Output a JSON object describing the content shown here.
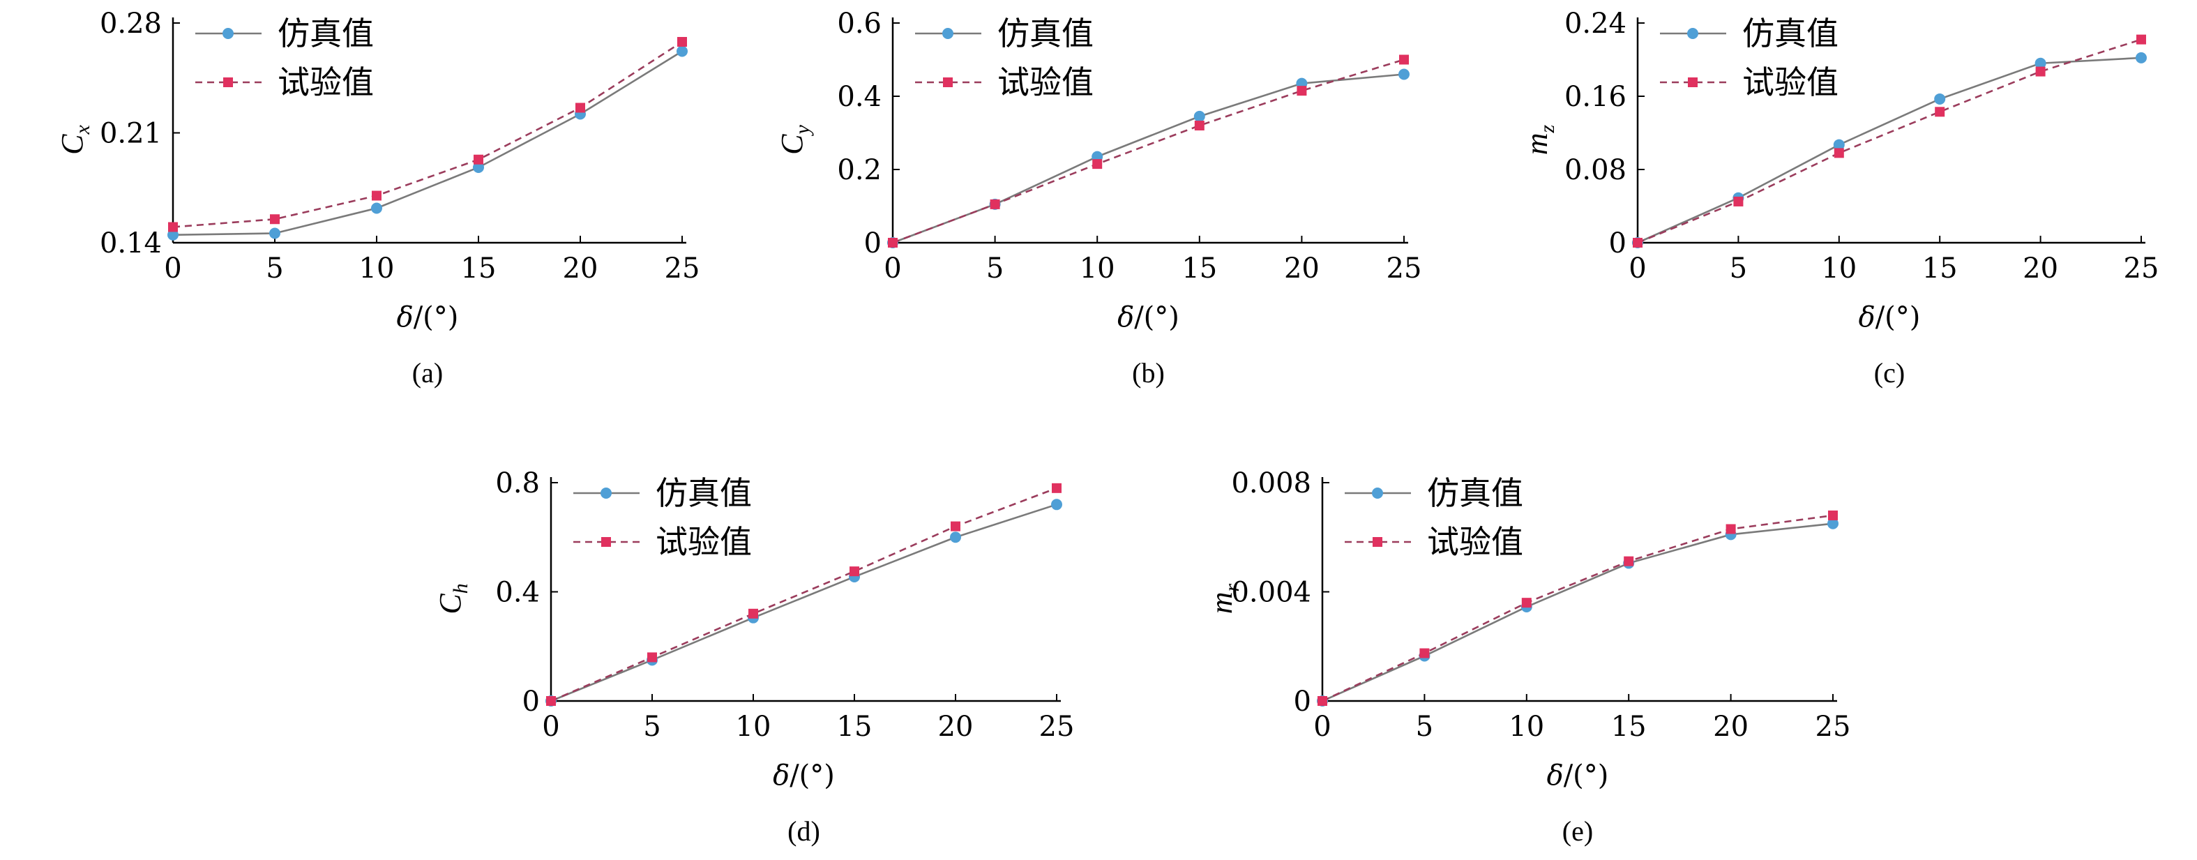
{
  "colors": {
    "sim": "#4f9fd6",
    "sim_line": "#7a7a7a",
    "exp": "#e0315f",
    "exp_line": "#9b3c5c",
    "axis": "#000000"
  },
  "chart_data": [
    {
      "type": "line",
      "panel_label": "(a)",
      "xlabel_html": "δ/(°)",
      "ylabel_main": "C",
      "ylabel_sub": "x",
      "x": [
        0,
        5,
        10,
        15,
        20,
        25
      ],
      "xlim": [
        0,
        25
      ],
      "xticks": [
        "0",
        "5",
        "10",
        "15",
        "20",
        "25"
      ],
      "ylim": [
        0.14,
        0.28
      ],
      "yticks": [
        "0.14",
        "0.21",
        "0.28"
      ],
      "yticks_values": [
        0.14,
        0.21,
        0.28
      ],
      "legend": "top-left",
      "grid": false,
      "series": [
        {
          "name": "仿真值",
          "values": [
            0.145,
            0.146,
            0.162,
            0.188,
            0.222,
            0.262
          ]
        },
        {
          "name": "试验值",
          "values": [
            0.15,
            0.155,
            0.17,
            0.193,
            0.226,
            0.268
          ]
        }
      ]
    },
    {
      "type": "line",
      "panel_label": "(b)",
      "xlabel_html": "δ/(°)",
      "ylabel_main": "C",
      "ylabel_sub": "y",
      "x": [
        0,
        5,
        10,
        15,
        20,
        25
      ],
      "xlim": [
        0,
        25
      ],
      "xticks": [
        "0",
        "5",
        "10",
        "15",
        "20",
        "25"
      ],
      "ylim": [
        0,
        0.6
      ],
      "yticks": [
        "0",
        "0.2",
        "0.4",
        "0.6"
      ],
      "yticks_values": [
        0,
        0.2,
        0.4,
        0.6
      ],
      "legend": "top-left",
      "grid": false,
      "series": [
        {
          "name": "仿真值",
          "values": [
            0,
            0.105,
            0.235,
            0.345,
            0.435,
            0.46
          ]
        },
        {
          "name": "试验值",
          "values": [
            0,
            0.105,
            0.215,
            0.32,
            0.415,
            0.5
          ]
        }
      ]
    },
    {
      "type": "line",
      "panel_label": "(c)",
      "xlabel_html": "δ/(°)",
      "ylabel_main": "m",
      "ylabel_sub": "z",
      "x": [
        0,
        5,
        10,
        15,
        20,
        25
      ],
      "xlim": [
        0,
        25
      ],
      "xticks": [
        "0",
        "5",
        "10",
        "15",
        "20",
        "25"
      ],
      "ylim": [
        0,
        0.24
      ],
      "yticks": [
        "0",
        "0.08",
        "0.16",
        "0.24"
      ],
      "yticks_values": [
        0,
        0.08,
        0.16,
        0.24
      ],
      "legend": "top-left",
      "grid": false,
      "series": [
        {
          "name": "仿真值",
          "values": [
            0,
            0.049,
            0.107,
            0.157,
            0.196,
            0.202
          ]
        },
        {
          "name": "试验值",
          "values": [
            0,
            0.045,
            0.098,
            0.143,
            0.187,
            0.222
          ]
        }
      ]
    },
    {
      "type": "line",
      "panel_label": "(d)",
      "xlabel_html": "δ/(°)",
      "ylabel_main": "C",
      "ylabel_sub": "h",
      "x": [
        0,
        5,
        10,
        15,
        20,
        25
      ],
      "xlim": [
        0,
        25
      ],
      "xticks": [
        "0",
        "5",
        "10",
        "15",
        "20",
        "25"
      ],
      "ylim": [
        0,
        0.8
      ],
      "yticks": [
        "0",
        "0.4",
        "0.8"
      ],
      "yticks_values": [
        0,
        0.4,
        0.8
      ],
      "legend": "top-left",
      "grid": false,
      "series": [
        {
          "name": "仿真值",
          "values": [
            0,
            0.15,
            0.305,
            0.455,
            0.6,
            0.72
          ]
        },
        {
          "name": "试验值",
          "values": [
            0,
            0.16,
            0.32,
            0.475,
            0.64,
            0.78
          ]
        }
      ]
    },
    {
      "type": "line",
      "panel_label": "(e)",
      "xlabel_html": "δ/(°)",
      "ylabel_main": "m",
      "ylabel_sub": "r",
      "x": [
        0,
        5,
        10,
        15,
        20,
        25
      ],
      "xlim": [
        0,
        25
      ],
      "xticks": [
        "0",
        "5",
        "10",
        "15",
        "20",
        "25"
      ],
      "ylim": [
        0,
        0.008
      ],
      "yticks": [
        "0",
        "0.004",
        "0.008"
      ],
      "yticks_values": [
        0,
        0.004,
        0.008
      ],
      "legend": "top-left",
      "grid": false,
      "series": [
        {
          "name": "仿真值",
          "values": [
            0,
            0.00165,
            0.00345,
            0.00505,
            0.0061,
            0.0065
          ]
        },
        {
          "name": "试验值",
          "values": [
            0,
            0.00175,
            0.0036,
            0.00512,
            0.0063,
            0.0068
          ]
        }
      ]
    }
  ]
}
